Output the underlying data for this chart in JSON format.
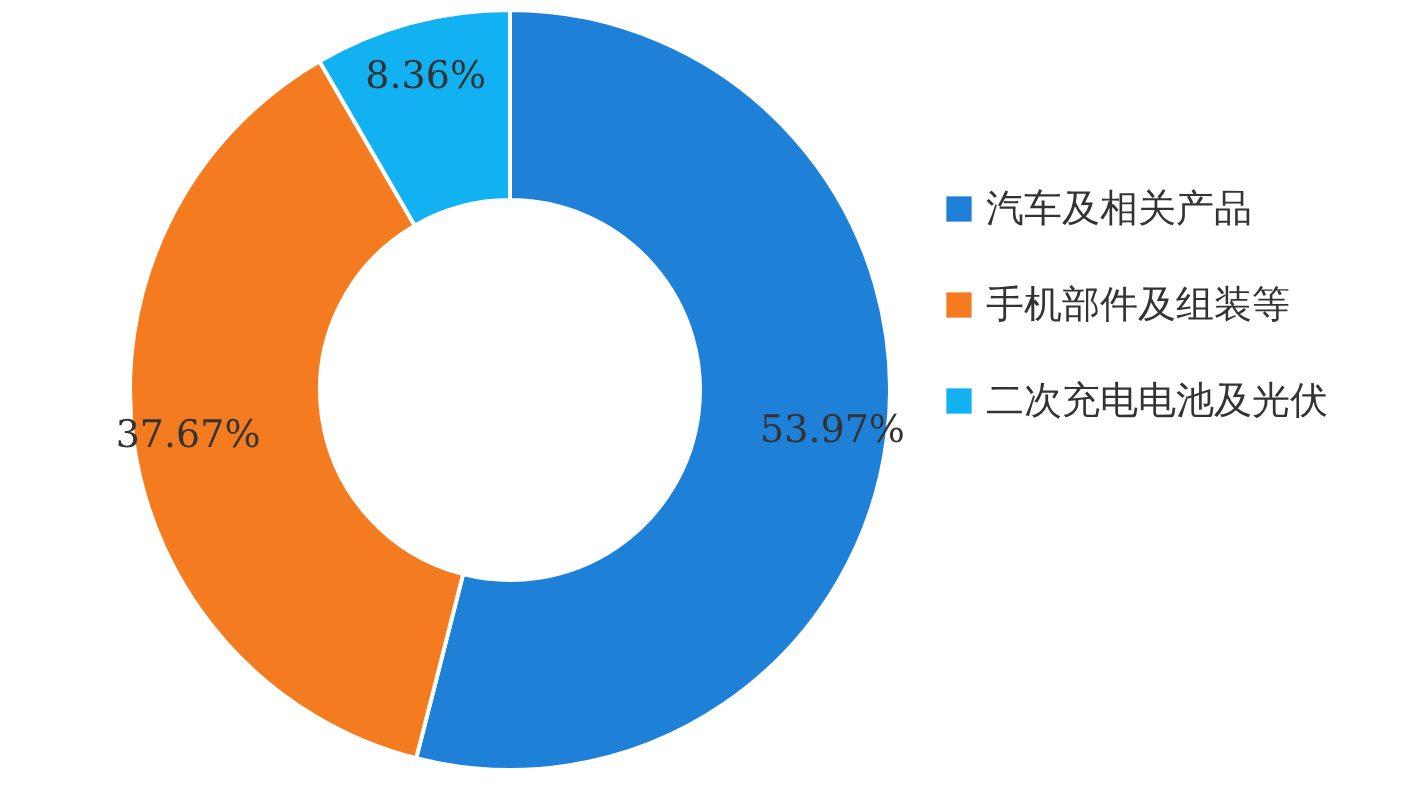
{
  "chart_data": {
    "type": "donut",
    "categories": [
      "汽车及相关产品",
      "手机部件及组装等",
      "二次充电电池及光伏"
    ],
    "values": [
      53.97,
      37.67,
      8.36
    ],
    "colors": [
      "#1f80d8",
      "#f47b20",
      "#12b1f2"
    ],
    "value_labels": [
      "53.97%",
      "37.67%",
      "8.36%"
    ],
    "legend": "right"
  }
}
